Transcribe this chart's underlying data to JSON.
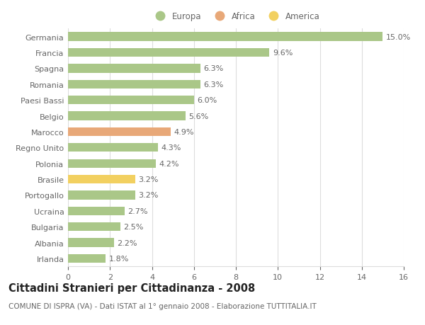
{
  "categories": [
    "Irlanda",
    "Albania",
    "Bulgaria",
    "Ucraina",
    "Portogallo",
    "Brasile",
    "Polonia",
    "Regno Unito",
    "Marocco",
    "Belgio",
    "Paesi Bassi",
    "Romania",
    "Spagna",
    "Francia",
    "Germania"
  ],
  "values": [
    1.8,
    2.2,
    2.5,
    2.7,
    3.2,
    3.2,
    4.2,
    4.3,
    4.9,
    5.6,
    6.0,
    6.3,
    6.3,
    9.6,
    15.0
  ],
  "colors": [
    "#aac788",
    "#aac788",
    "#aac788",
    "#aac788",
    "#aac788",
    "#f2d060",
    "#aac788",
    "#aac788",
    "#e8a878",
    "#aac788",
    "#aac788",
    "#aac788",
    "#aac788",
    "#aac788",
    "#aac788"
  ],
  "legend_labels": [
    "Europa",
    "Africa",
    "America"
  ],
  "legend_colors": [
    "#aac788",
    "#e8a878",
    "#f2d060"
  ],
  "title": "Cittadini Stranieri per Cittadinanza - 2008",
  "subtitle": "COMUNE DI ISPRA (VA) - Dati ISTAT al 1° gennaio 2008 - Elaborazione TUTTITALIA.IT",
  "xlim": [
    0,
    16
  ],
  "xticks": [
    0,
    2,
    4,
    6,
    8,
    10,
    12,
    14,
    16
  ],
  "background_color": "#ffffff",
  "bar_height": 0.55,
  "grid_color": "#dddddd",
  "label_fontsize": 8,
  "title_fontsize": 10.5,
  "subtitle_fontsize": 7.5,
  "text_color": "#666666"
}
